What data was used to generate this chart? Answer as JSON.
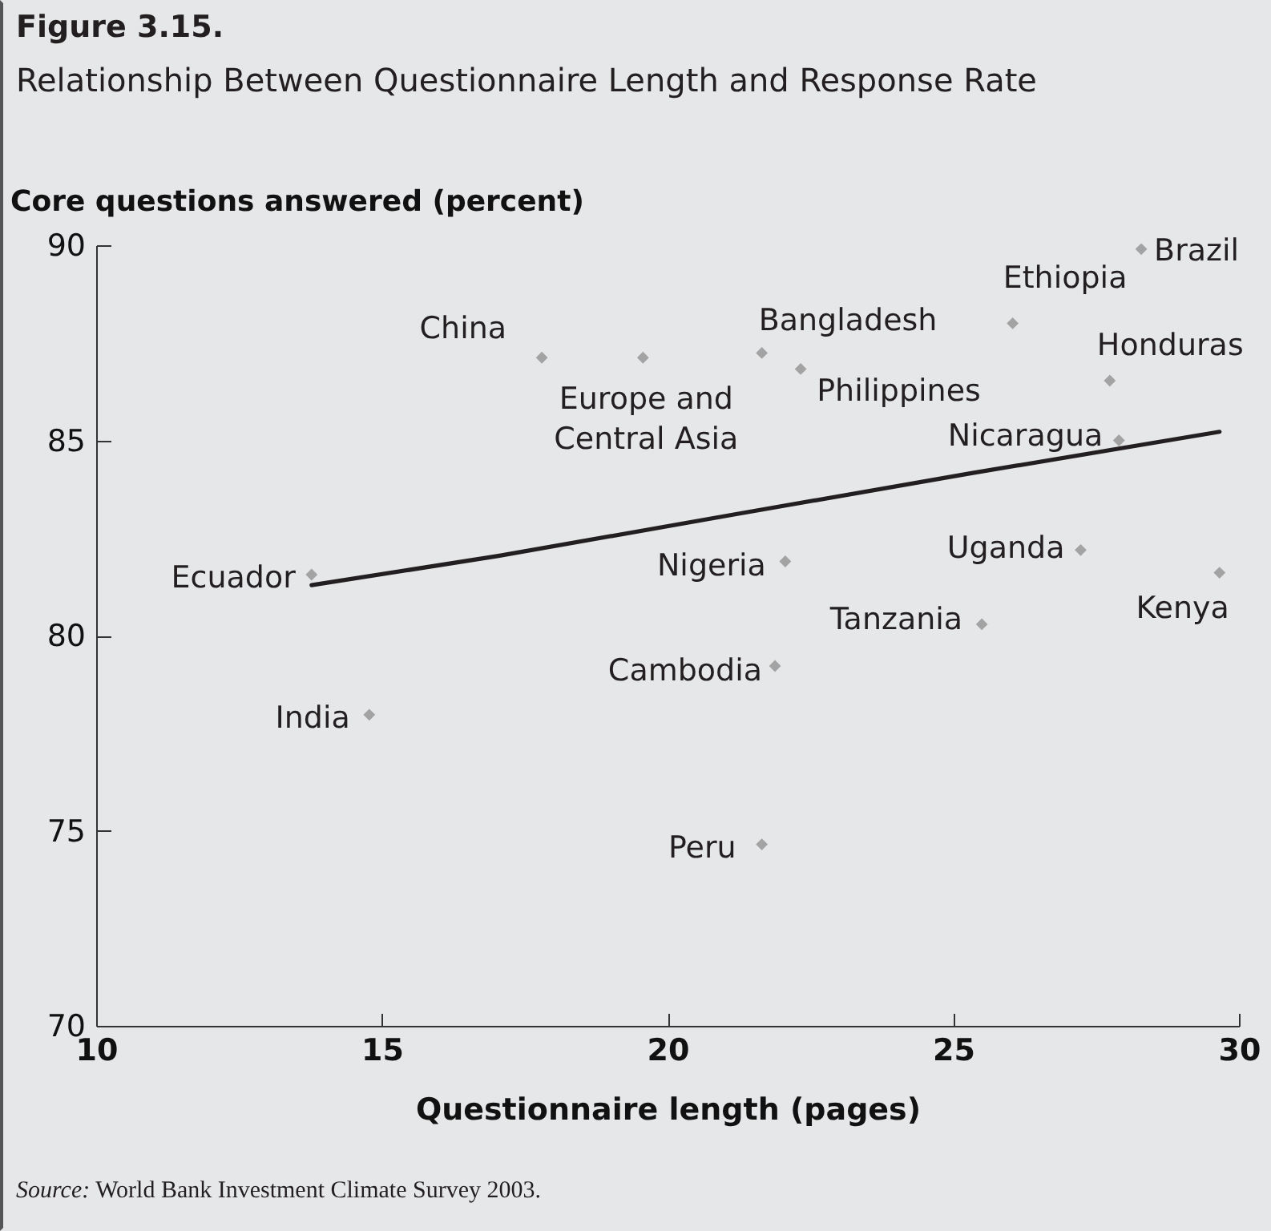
{
  "chart_data": {
    "type": "scatter",
    "title": "Figure 3.15.",
    "subtitle": "Relationship Between Questionnaire Length and Response Rate",
    "xlabel": "Questionnaire length (pages)",
    "ylabel": "Core questions answered (percent)",
    "xlim": [
      10,
      30
    ],
    "xticks": [
      10,
      15,
      20,
      25,
      30
    ],
    "ylim": [
      70,
      90
    ],
    "yticks": [
      70,
      75,
      80,
      85,
      90
    ],
    "marker": "diamond",
    "grid": false,
    "series": [
      {
        "color": "#a3a3a3",
        "x": [
          13.77,
          14.78,
          17.8,
          19.57,
          21.65,
          22.33,
          26.04,
          28.29,
          27.74,
          27.9,
          22.06,
          27.23,
          29.66,
          25.5,
          21.88,
          21.65
        ],
        "values": [
          81.56,
          77.97,
          87.12,
          87.12,
          87.24,
          86.83,
          88.0,
          89.9,
          86.53,
          85.0,
          81.9,
          82.19,
          81.61,
          80.29,
          79.22,
          74.65
        ]
      },
      {
        "type": "line",
        "marker": "none",
        "color": "#231f20",
        "x": [
          13.77,
          17.04,
          21.16,
          25.32,
          29.66
        ],
        "values": [
          81.29,
          82.04,
          83.1,
          84.16,
          85.22
        ]
      }
    ],
    "annotations": [
      {
        "text": "Ecuador",
        "x": 13.77,
        "y": 81.56
      },
      {
        "text": "India",
        "x": 14.78,
        "y": 77.97
      },
      {
        "text": "China",
        "x": 17.8,
        "y": 87.12
      },
      {
        "text": "Europe and\nCentral Asia",
        "x": 19.57,
        "y": 87.12
      },
      {
        "text": "Bangladesh",
        "x": 21.65,
        "y": 87.24
      },
      {
        "text": "Philippines",
        "x": 22.33,
        "y": 86.83
      },
      {
        "text": "Ethiopia",
        "x": 26.04,
        "y": 88.0
      },
      {
        "text": "Brazil",
        "x": 28.29,
        "y": 89.9
      },
      {
        "text": "Honduras",
        "x": 27.74,
        "y": 86.53
      },
      {
        "text": "Nicaragua",
        "x": 27.9,
        "y": 85.0
      },
      {
        "text": "Nigeria",
        "x": 22.06,
        "y": 81.9
      },
      {
        "text": "Uganda",
        "x": 27.23,
        "y": 82.19
      },
      {
        "text": "Kenya",
        "x": 29.66,
        "y": 81.61
      },
      {
        "text": "Tanzania",
        "x": 25.5,
        "y": 80.29
      },
      {
        "text": "Cambodia",
        "x": 21.88,
        "y": 79.22
      },
      {
        "text": "Peru",
        "x": 21.65,
        "y": 74.65
      },
      "Source: World Bank Investment Climate Survey 2003."
    ]
  }
}
